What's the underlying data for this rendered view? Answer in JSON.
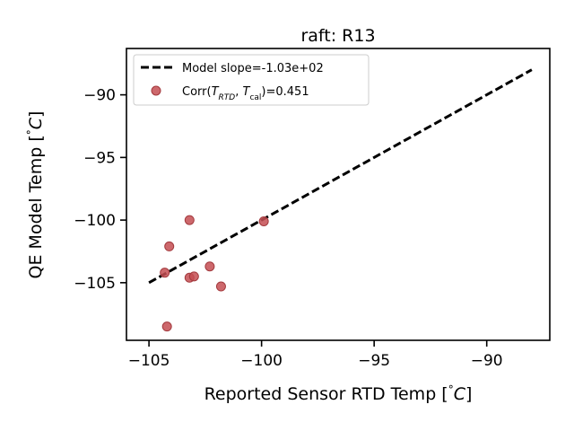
{
  "chart_data": {
    "type": "scatter",
    "title": "raft: R13",
    "xlabel": "Reported Sensor RTD Temp [$^{\\circ}C$]",
    "xlabel_text": "Reported Sensor RTD Temp [",
    "xlabel_unit_deg": "°",
    "xlabel_unit_C": "C",
    "xlabel_close": "]",
    "ylabel_text": "QE Model Temp [",
    "ylabel_unit_deg": "°",
    "ylabel_unit_C": "C",
    "ylabel_close": "]",
    "xlim": [
      -106.0,
      -87.2
    ],
    "ylim": [
      -109.6,
      -86.3
    ],
    "xticks": [
      -105,
      -100,
      -95,
      -90
    ],
    "xtick_labels": [
      "−105",
      "−100",
      "−95",
      "−90"
    ],
    "yticks": [
      -90,
      -95,
      -100,
      -105
    ],
    "ytick_labels": [
      "−90",
      "−95",
      "−100",
      "−105"
    ],
    "grid": false,
    "legend_position": "top-left",
    "series": [
      {
        "kind": "line",
        "name": "Model slope=-1.03e+02",
        "color": "#000000",
        "style": "dashed",
        "x": [
          -105.0,
          -88.0
        ],
        "y": [
          -105.0,
          -88.0
        ]
      },
      {
        "kind": "scatter",
        "name": "Corr(T_RTD, T_cal)=0.451",
        "legend_prefix": "Corr(",
        "legend_T1": "T",
        "legend_sub1": "RTD",
        "legend_sep": ", ",
        "legend_T2": "T",
        "legend_sub2": "cal",
        "legend_suffix": ")=0.451",
        "color": "#c44e52",
        "x": [
          -104.3,
          -104.1,
          -103.2,
          -103.2,
          -103.0,
          -102.3,
          -101.8,
          -99.9,
          -104.2
        ],
        "y": [
          -104.2,
          -102.1,
          -100.0,
          -104.6,
          -104.5,
          -103.7,
          -105.3,
          -100.1,
          -108.5
        ]
      }
    ]
  }
}
